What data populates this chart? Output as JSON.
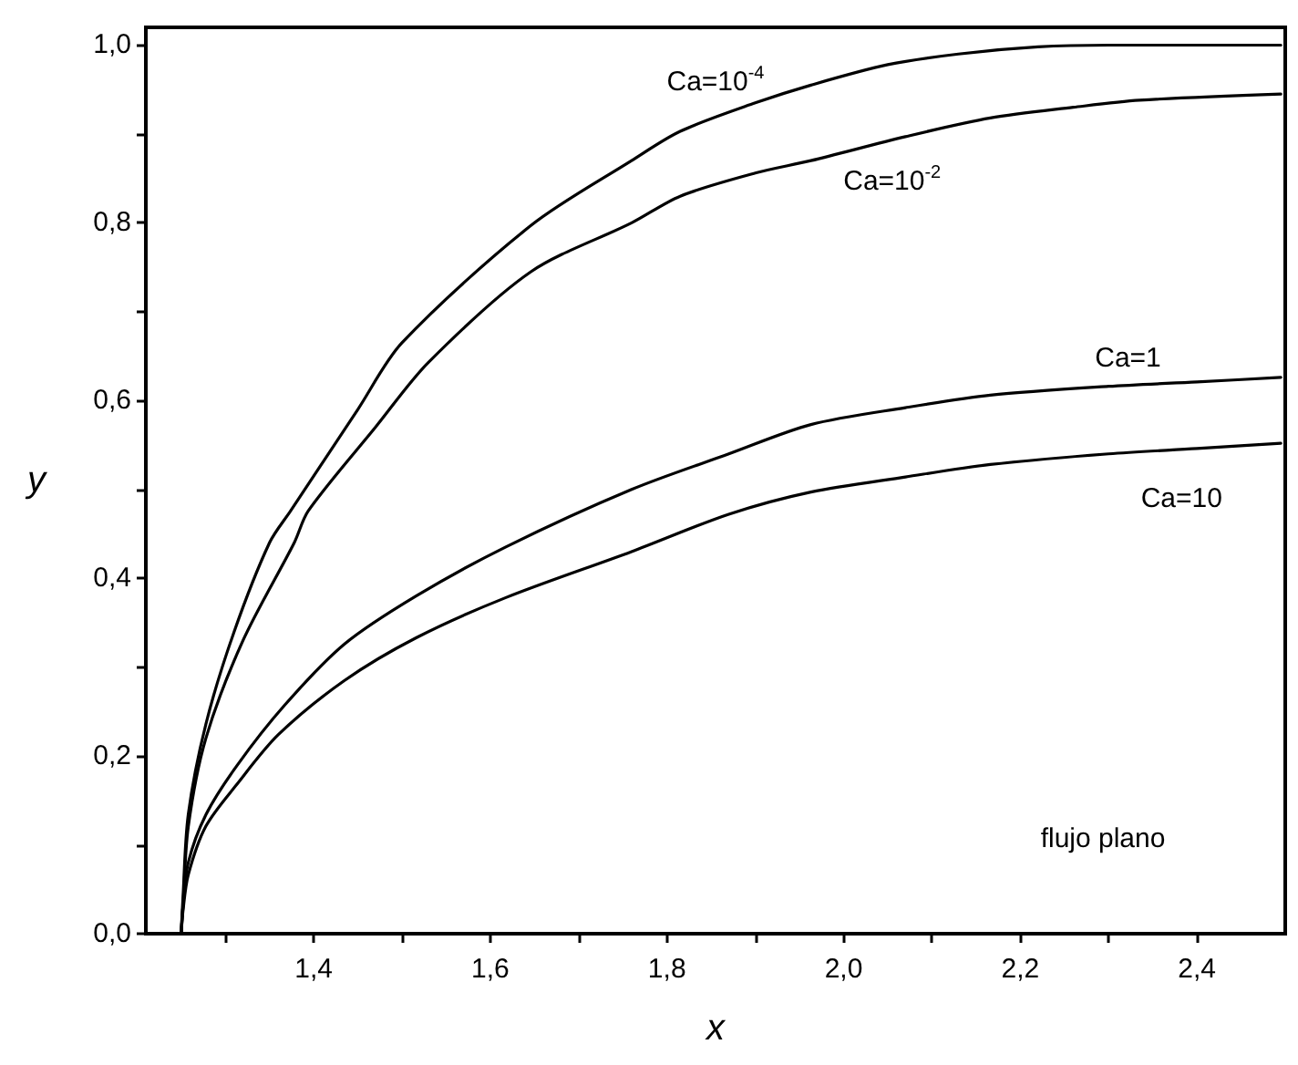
{
  "chart_data": {
    "type": "line",
    "xlabel": "x",
    "ylabel": "y",
    "xlim": [
      1.21,
      2.5
    ],
    "ylim": [
      0,
      1.02
    ],
    "xticks": [
      {
        "value": 1.3,
        "label": null
      },
      {
        "value": 1.4,
        "label": "1,4"
      },
      {
        "value": 1.5,
        "label": null
      },
      {
        "value": 1.6,
        "label": "1,6"
      },
      {
        "value": 1.7,
        "label": null
      },
      {
        "value": 1.8,
        "label": "1,8"
      },
      {
        "value": 1.9,
        "label": null
      },
      {
        "value": 2.0,
        "label": "2,0"
      },
      {
        "value": 2.1,
        "label": null
      },
      {
        "value": 2.2,
        "label": "2,2"
      },
      {
        "value": 2.3,
        "label": null
      },
      {
        "value": 2.4,
        "label": "2,4"
      }
    ],
    "yticks": [
      {
        "value": 0,
        "label": "0,0"
      },
      {
        "value": 0.1,
        "label": null
      },
      {
        "value": 0.2,
        "label": "0,2"
      },
      {
        "value": 0.3,
        "label": null
      },
      {
        "value": 0.4,
        "label": "0,4"
      },
      {
        "value": 0.5,
        "label": null
      },
      {
        "value": 0.6,
        "label": "0,6"
      },
      {
        "value": 0.7,
        "label": null
      },
      {
        "value": 0.8,
        "label": "0,8"
      },
      {
        "value": 0.9,
        "label": null
      },
      {
        "value": 1.0,
        "label": "1,0"
      }
    ],
    "grid": false,
    "marker": "none",
    "line_style": "solid",
    "series": [
      {
        "name": "Ca=10$^{-4}$",
        "color": "#000000",
        "x": [
          1.25,
          1.252,
          1.258,
          1.278,
          1.31,
          1.35,
          1.374,
          1.45,
          1.5,
          1.646,
          1.76,
          1.815,
          1.9,
          1.963,
          2.05,
          2.13,
          2.22,
          2.3,
          2.4,
          2.495
        ],
        "values": [
          0,
          0.04,
          0.134,
          0.236,
          0.34,
          0.44,
          0.476,
          0.59,
          0.665,
          0.797,
          0.87,
          0.903,
          0.935,
          0.955,
          0.978,
          0.99,
          0.998,
          1.0,
          1.0,
          1.0
        ]
      },
      {
        "name": "Ca=10$^{-2}$",
        "color": "#000000",
        "x": [
          1.25,
          1.252,
          1.258,
          1.278,
          1.32,
          1.378,
          1.394,
          1.47,
          1.53,
          1.646,
          1.76,
          1.815,
          1.9,
          1.963,
          2.07,
          2.166,
          2.26,
          2.335,
          2.495
        ],
        "values": [
          0,
          0.03,
          0.12,
          0.22,
          0.33,
          0.44,
          0.476,
          0.57,
          0.643,
          0.745,
          0.8,
          0.83,
          0.856,
          0.87,
          0.897,
          0.918,
          0.93,
          0.938,
          0.945
        ]
      },
      {
        "name": "Ca=1",
        "color": "#000000",
        "x": [
          1.25,
          1.252,
          1.258,
          1.278,
          1.313,
          1.367,
          1.435,
          1.516,
          1.617,
          1.76,
          1.87,
          1.963,
          2.07,
          2.166,
          2.3,
          2.4,
          2.495
        ],
        "values": [
          0,
          0.03,
          0.08,
          0.134,
          0.189,
          0.257,
          0.326,
          0.38,
          0.435,
          0.5,
          0.54,
          0.573,
          0.592,
          0.606,
          0.616,
          0.621,
          0.626
        ]
      },
      {
        "name": "Ca=10",
        "color": "#000000",
        "x": [
          1.25,
          1.252,
          1.258,
          1.278,
          1.313,
          1.36,
          1.435,
          1.516,
          1.617,
          1.76,
          1.87,
          1.963,
          2.07,
          2.166,
          2.3,
          2.4,
          2.495
        ],
        "values": [
          0,
          0.025,
          0.066,
          0.121,
          0.168,
          0.224,
          0.285,
          0.333,
          0.378,
          0.43,
          0.472,
          0.497,
          0.514,
          0.528,
          0.54,
          0.546,
          0.552
        ]
      }
    ],
    "annotations": [
      "flujo plano"
    ]
  }
}
